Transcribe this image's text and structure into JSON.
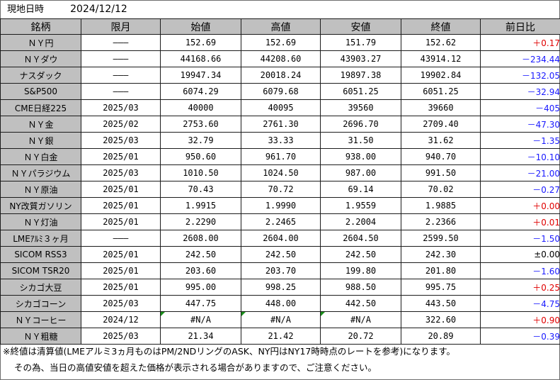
{
  "header": {
    "label": "現地日時",
    "date": "2024/12/12"
  },
  "columns": [
    "銘柄",
    "限月",
    "始値",
    "高値",
    "安値",
    "終値",
    "前日比"
  ],
  "rows": [
    {
      "name": "ＮＹ円",
      "month": "―――",
      "open": "152.69",
      "high": "152.69",
      "low": "151.79",
      "close": "152.62",
      "change": "＋0.17",
      "dir": "up"
    },
    {
      "name": "ＮＹダウ",
      "month": "―――",
      "open": "44168.66",
      "high": "44208.60",
      "low": "43903.27",
      "close": "43914.12",
      "change": "－234.44",
      "dir": "down"
    },
    {
      "name": "ナスダック",
      "month": "―――",
      "open": "19947.34",
      "high": "20018.24",
      "low": "19897.38",
      "close": "19902.84",
      "change": "－132.05",
      "dir": "down"
    },
    {
      "name": "S&P500",
      "month": "―――",
      "open": "6074.29",
      "high": "6079.68",
      "low": "6051.25",
      "close": "6051.25",
      "change": "－32.94",
      "dir": "down"
    },
    {
      "name": "CME日経225",
      "month": "2025/03",
      "open": "40000",
      "high": "40095",
      "low": "39560",
      "close": "39660",
      "change": "－405",
      "dir": "down"
    },
    {
      "name": "ＮＹ金",
      "month": "2025/02",
      "open": "2753.60",
      "high": "2761.30",
      "low": "2696.70",
      "close": "2709.40",
      "change": "－47.30",
      "dir": "down"
    },
    {
      "name": "ＮＹ銀",
      "month": "2025/03",
      "open": "32.79",
      "high": "33.33",
      "low": "31.50",
      "close": "31.62",
      "change": "－1.35",
      "dir": "down"
    },
    {
      "name": "ＮＹ白金",
      "month": "2025/01",
      "open": "950.60",
      "high": "961.70",
      "low": "938.00",
      "close": "940.70",
      "change": "－10.10",
      "dir": "down"
    },
    {
      "name": "ＮＹパラジウム",
      "month": "2025/03",
      "open": "1010.50",
      "high": "1024.50",
      "low": "987.00",
      "close": "991.50",
      "change": "－21.00",
      "dir": "down"
    },
    {
      "name": "ＮＹ原油",
      "month": "2025/01",
      "open": "70.43",
      "high": "70.72",
      "low": "69.14",
      "close": "70.02",
      "change": "－0.27",
      "dir": "down"
    },
    {
      "name": "NY改質ガソリン",
      "month": "2025/01",
      "open": "1.9915",
      "high": "1.9990",
      "low": "1.9559",
      "close": "1.9885",
      "change": "＋0.00",
      "dir": "up"
    },
    {
      "name": "ＮＹ灯油",
      "month": "2025/01",
      "open": "2.2290",
      "high": "2.2465",
      "low": "2.2004",
      "close": "2.2366",
      "change": "＋0.01",
      "dir": "up"
    },
    {
      "name": "LMEｱﾙﾐ３ヶ月",
      "month": "―――",
      "open": "2608.00",
      "high": "2604.00",
      "low": "2604.50",
      "close": "2599.50",
      "change": "－1.50",
      "dir": "down"
    },
    {
      "name": "SICOM RSS3",
      "month": "2025/01",
      "open": "242.50",
      "high": "242.50",
      "low": "242.50",
      "close": "242.30",
      "change": "±0.00",
      "dir": "flat"
    },
    {
      "name": "SICOM TSR20",
      "month": "2025/01",
      "open": "203.60",
      "high": "203.70",
      "low": "199.80",
      "close": "201.80",
      "change": "－1.60",
      "dir": "down"
    },
    {
      "name": "シカゴ大豆",
      "month": "2025/01",
      "open": "995.00",
      "high": "998.25",
      "low": "988.50",
      "close": "995.75",
      "change": "＋0.25",
      "dir": "up"
    },
    {
      "name": "シカゴコーン",
      "month": "2025/03",
      "open": "447.75",
      "high": "448.00",
      "low": "442.50",
      "close": "443.50",
      "change": "－4.75",
      "dir": "down"
    },
    {
      "name": "ＮＹコーヒー",
      "month": "2024/12",
      "open": "#N/A",
      "high": "#N/A",
      "low": "#N/A",
      "close": "322.60",
      "change": "＋0.90",
      "dir": "up",
      "error_cells": true
    },
    {
      "name": "ＮＹ粗糖",
      "month": "2025/03",
      "open": "21.34",
      "high": "21.42",
      "low": "20.72",
      "close": "20.89",
      "change": "－0.39",
      "dir": "down"
    }
  ],
  "notes": [
    "※終値は清算値(LMEアルミ3ヵ月ものはPM/2NDリングのASK、NY円はNY17時時点のレートを参考)になります。",
    "その為、当日の高値安値を超えた価格が表示される場合がありますので、ご注意ください。"
  ],
  "colors": {
    "header_bg": "#c0c0c0",
    "up": "#e00000",
    "down": "#1a1aff",
    "error_flag": "#1a8f1a"
  }
}
